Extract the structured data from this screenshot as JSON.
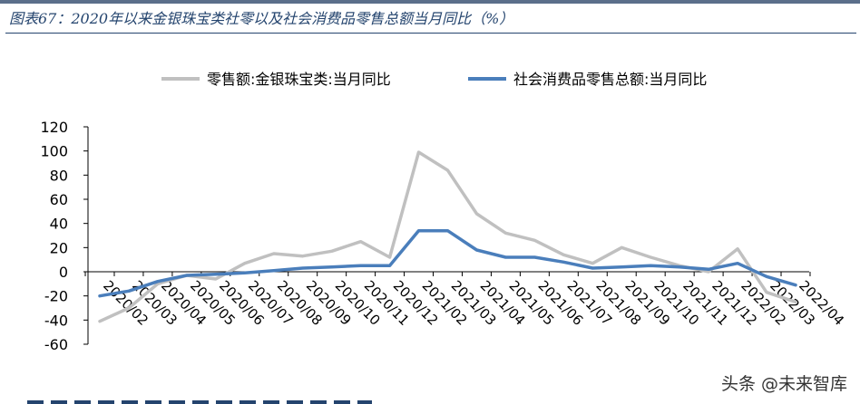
{
  "figure": {
    "title": "图表67：2020年以来金银珠宝类社零以及社会消费品零售总额当月同比（%）"
  },
  "watermark": "头条 @未来智库",
  "chart_data": {
    "type": "line",
    "title": "",
    "xlabel": "",
    "ylabel": "",
    "ylim": [
      -60,
      120
    ],
    "yticks": [
      120,
      100,
      80,
      60,
      40,
      20,
      0,
      -20,
      -40,
      -60
    ],
    "grid": false,
    "legend_position": "top",
    "x": [
      "2020/02",
      "2020/03",
      "2020/04",
      "2020/05",
      "2020/06",
      "2020/07",
      "2020/08",
      "2020/09",
      "2020/10",
      "2020/11",
      "2020/12",
      "2021/02",
      "2021/03",
      "2021/04",
      "2021/05",
      "2021/06",
      "2021/07",
      "2021/08",
      "2021/09",
      "2021/10",
      "2021/11",
      "2021/12",
      "2022/02",
      "2022/03",
      "2022/04"
    ],
    "series": [
      {
        "name": "零售额:金银珠宝类:当月同比",
        "color": "#c0c0c0",
        "values": [
          -41,
          -30,
          -10,
          -3,
          -6,
          7,
          15,
          13,
          17,
          25,
          12,
          99,
          84,
          48,
          32,
          26,
          14,
          7,
          20,
          12,
          5,
          0,
          19,
          -17,
          -25
        ]
      },
      {
        "name": "社会消费品零售总额:当月同比",
        "color": "#4a7ebb",
        "values": [
          -20,
          -16,
          -8,
          -3,
          -2,
          -1,
          1,
          3,
          4,
          5,
          5,
          34,
          34,
          18,
          12,
          12,
          8,
          3,
          4,
          5,
          4,
          2,
          7,
          -4,
          -11
        ]
      }
    ]
  }
}
